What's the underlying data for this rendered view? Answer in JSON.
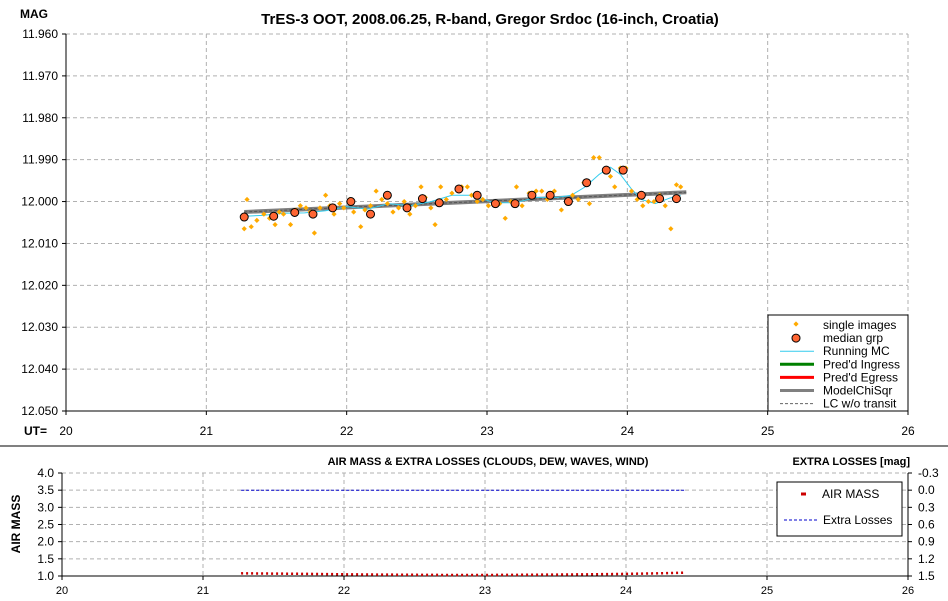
{
  "chart_data": [
    {
      "type": "scatter",
      "title": "TrES-3 OOT, 2008.06.25, R-band, Gregor Srdoc (16-inch, Croatia)",
      "ylabel": "MAG",
      "xlabel": "UT=",
      "xlim": [
        20,
        26
      ],
      "ylim": [
        11.96,
        12.05
      ],
      "y_inverted": true,
      "grid": true,
      "x_ticks": [
        "20",
        "21",
        "22",
        "23",
        "24",
        "25",
        "26"
      ],
      "y_ticks": [
        "11.960",
        "11.970",
        "11.980",
        "11.990",
        "12.000",
        "12.010",
        "12.020",
        "12.030",
        "12.040",
        "12.050"
      ],
      "legend_position": "bottom-right",
      "series": [
        {
          "name": "single images",
          "color": "#ffaa00",
          "x": [
            21.27,
            21.29,
            21.32,
            21.36,
            21.41,
            21.45,
            21.49,
            21.52,
            21.55,
            21.6,
            21.64,
            21.67,
            21.71,
            21.74,
            21.77,
            21.81,
            21.85,
            21.88,
            21.91,
            21.95,
            21.98,
            22.02,
            22.05,
            22.1,
            22.13,
            22.17,
            22.21,
            22.25,
            22.29,
            22.33,
            22.37,
            22.41,
            22.45,
            22.49,
            22.53,
            22.56,
            22.6,
            22.63,
            22.67,
            22.71,
            22.75,
            22.79,
            22.82,
            22.86,
            22.89,
            22.93,
            22.97,
            23.01,
            23.05,
            23.09,
            23.13,
            23.17,
            23.21,
            23.25,
            23.3,
            23.35,
            23.39,
            23.43,
            23.48,
            23.53,
            23.57,
            23.61,
            23.65,
            23.69,
            23.73,
            23.76,
            23.8,
            23.84,
            23.88,
            23.91,
            23.95,
            23.99,
            24.03,
            24.07,
            24.11,
            24.15,
            24.19,
            24.23,
            24.27,
            24.31,
            24.35,
            24.38
          ],
          "y": [
            12.0065,
            11.9995,
            12.006,
            12.0045,
            12.003,
            12.004,
            12.0055,
            12.0025,
            12.003,
            12.0055,
            12.002,
            12.001,
            12.0015,
            12.0025,
            12.0075,
            12.0015,
            11.9985,
            12.001,
            12.003,
            12.0005,
            12.0015,
            11.9995,
            12.0025,
            12.006,
            12.002,
            12.001,
            11.9975,
            11.9995,
            12.0005,
            12.0025,
            12.0015,
            12.0,
            12.003,
            12.001,
            11.9965,
            11.999,
            12.0015,
            12.0055,
            11.9965,
            11.9995,
            11.998,
            11.997,
            11.9965,
            11.9965,
            11.9985,
            12.0,
            11.9995,
            12.001,
            12.0005,
            12.0005,
            12.004,
            12.0,
            11.9965,
            12.001,
            11.998,
            11.9975,
            11.9975,
            11.9995,
            11.9975,
            12.002,
            12.0005,
            11.9985,
            11.9995,
            11.9955,
            12.0005,
            11.9895,
            11.9895,
            11.9925,
            11.994,
            11.9965,
            11.992,
            11.992,
            11.9975,
            11.9995,
            12.001,
            12.0,
            12.0,
            11.9985,
            12.001,
            12.0065,
            11.996,
            11.9965
          ]
        },
        {
          "name": "median grp",
          "color": "#ff6633",
          "x": [
            21.27,
            21.48,
            21.63,
            21.76,
            21.9,
            22.03,
            22.17,
            22.29,
            22.43,
            22.54,
            22.66,
            22.8,
            22.93,
            23.06,
            23.2,
            23.32,
            23.45,
            23.58,
            23.71,
            23.85,
            23.97,
            24.1,
            24.23,
            24.35
          ],
          "y": [
            12.0037,
            12.0035,
            12.0026,
            12.003,
            12.0015,
            12.0,
            12.003,
            11.9985,
            12.0015,
            11.9993,
            12.0003,
            11.997,
            11.9985,
            12.0005,
            12.0005,
            11.9985,
            11.9985,
            12.0,
            11.9955,
            11.9925,
            11.9925,
            11.9985,
            11.9993,
            11.9993
          ]
        },
        {
          "name": "Running MC",
          "color": "#33ccee",
          "x": [
            21.27,
            21.4,
            21.55,
            21.7,
            21.85,
            22.0,
            22.15,
            22.3,
            22.45,
            22.6,
            22.75,
            22.9,
            23.05,
            23.2,
            23.35,
            23.5,
            23.6,
            23.7,
            23.8,
            23.88,
            23.95,
            24.03,
            24.1,
            24.2,
            24.3,
            24.38
          ],
          "y": [
            12.0035,
            12.0033,
            12.0028,
            12.0027,
            12.0022,
            12.0012,
            12.0018,
            12.0005,
            12.001,
            12.0,
            11.9985,
            11.9985,
            12.0003,
            12.0003,
            11.999,
            11.999,
            11.9985,
            11.9965,
            11.9935,
            11.9918,
            11.9935,
            11.997,
            11.9995,
            12.0005,
            11.9992,
            11.9985
          ]
        },
        {
          "name": "Pred'd Ingress",
          "color": "#008000",
          "x": [],
          "y": []
        },
        {
          "name": "Pred'd Egress",
          "color": "#ff0000",
          "x": [],
          "y": []
        },
        {
          "name": "ModelChiSqr",
          "color": "#808080",
          "x": [
            21.27,
            24.42
          ],
          "y": [
            12.0025,
            11.9978
          ]
        },
        {
          "name": "LC w/o transit",
          "color": "#808080",
          "x": [
            21.27,
            24.42
          ],
          "y": [
            12.0025,
            11.9978
          ]
        }
      ]
    },
    {
      "type": "line",
      "title": "AIR MASS & EXTRA LOSSES (CLOUDS, DEW, WAVES, WIND)",
      "ylabel": "AIR MASS",
      "y2label": "EXTRA LOSSES [mag]",
      "xlim": [
        20,
        26
      ],
      "ylim": [
        1.0,
        4.0
      ],
      "y2lim": [
        -0.3,
        1.5
      ],
      "y2_inverted": true,
      "grid": true,
      "x_ticks": [
        "20",
        "21",
        "22",
        "23",
        "24",
        "25",
        "26"
      ],
      "y_ticks": [
        "4.0",
        "3.5",
        "3.0",
        "2.5",
        "2.0",
        "1.5",
        "1.0"
      ],
      "y2_ticks": [
        "-0.3",
        "0.0",
        "0.3",
        "0.6",
        "0.9",
        "1.2",
        "1.5"
      ],
      "legend_position": "top-right",
      "series": [
        {
          "name": "AIR MASS",
          "color": "#cc0000",
          "x": [
            21.27,
            21.5,
            21.75,
            22.0,
            22.25,
            22.5,
            22.75,
            23.0,
            23.25,
            23.5,
            23.75,
            24.0,
            24.2,
            24.42
          ],
          "y": [
            1.08,
            1.07,
            1.06,
            1.05,
            1.04,
            1.035,
            1.03,
            1.03,
            1.035,
            1.04,
            1.05,
            1.06,
            1.075,
            1.095
          ]
        },
        {
          "name": "Extra Losses",
          "color": "#0000cc",
          "axis": "right",
          "x": [
            21.27,
            24.42
          ],
          "y": [
            0.0,
            0.0
          ]
        }
      ]
    }
  ]
}
